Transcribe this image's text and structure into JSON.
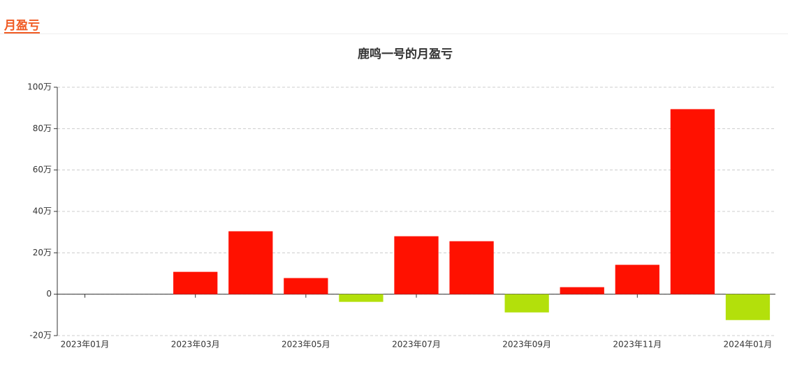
{
  "tab": "月盈亏",
  "chart_data": {
    "type": "bar",
    "title": "鹿鸣一号的月盈亏",
    "categories": [
      "2023年01月",
      null,
      "2023年03月",
      null,
      "2023年05月",
      null,
      "2023年07月",
      null,
      "2023年09月",
      null,
      "2023年11月",
      null,
      "2024年01月"
    ],
    "values": [
      0,
      0,
      10.8,
      30.4,
      7.8,
      -3.7,
      28,
      25.6,
      -8.8,
      3.4,
      14.2,
      89.4,
      -12.5
    ],
    "positive_color": "#ff1100",
    "negative_color": "#b3e00b",
    "ylim": [
      -20,
      100
    ],
    "yticks": [
      {
        "value": -20,
        "label": "-20万"
      },
      0,
      {
        "value": 20,
        "label": "20万"
      },
      {
        "value": 40,
        "label": "40万"
      },
      {
        "value": 60,
        "label": "60万"
      },
      {
        "value": 80,
        "label": "80万"
      },
      {
        "value": 100,
        "label": "100万"
      }
    ],
    "grid": true
  }
}
